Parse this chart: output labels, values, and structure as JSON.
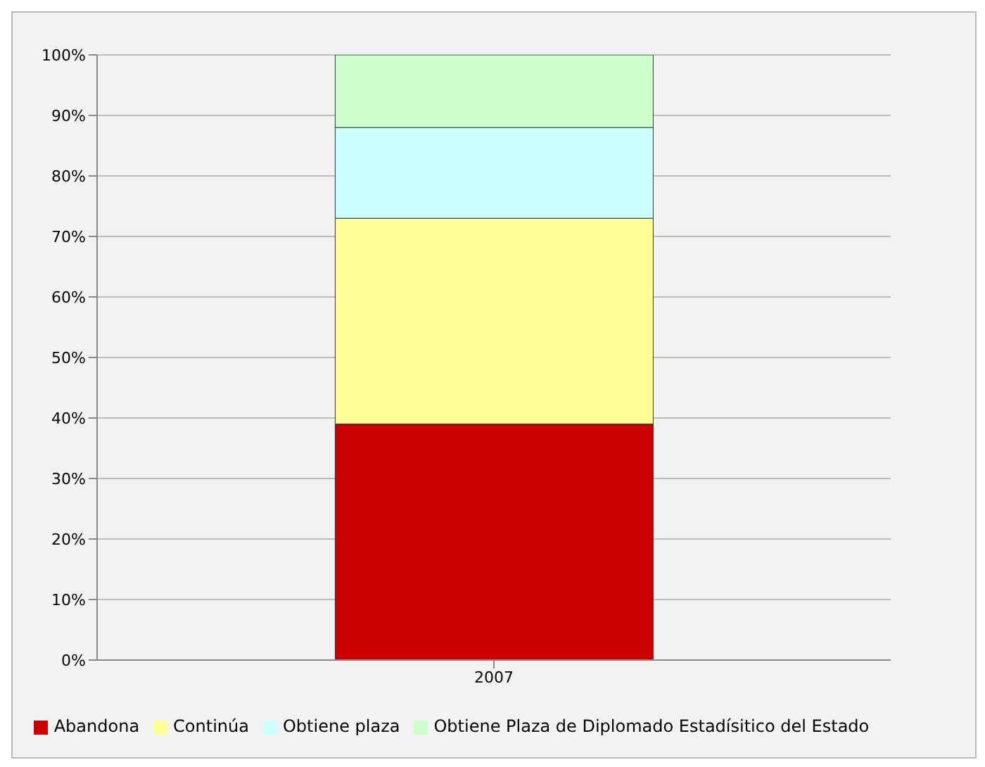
{
  "chart_data": {
    "type": "bar",
    "stacked": true,
    "categories": [
      "2007"
    ],
    "series": [
      {
        "name": "Abandona",
        "color": "#cc0000",
        "values": [
          39
        ]
      },
      {
        "name": "Continúa",
        "color": "#ffff99",
        "values": [
          34
        ]
      },
      {
        "name": "Obtiene plaza",
        "color": "#ccffff",
        "values": [
          15
        ]
      },
      {
        "name": "Obtiene Plaza de Diplomado Estadísitico del Estado",
        "color": "#ccffcc",
        "values": [
          12
        ]
      }
    ],
    "ylim": [
      0,
      100
    ],
    "yticks": [
      {
        "value": 0,
        "label": "0%"
      },
      {
        "value": 10,
        "label": "10%"
      },
      {
        "value": 20,
        "label": "20%"
      },
      {
        "value": 30,
        "label": "30%"
      },
      {
        "value": 40,
        "label": "40%"
      },
      {
        "value": 50,
        "label": "50%"
      },
      {
        "value": 60,
        "label": "60%"
      },
      {
        "value": 70,
        "label": "70%"
      },
      {
        "value": 80,
        "label": "80%"
      },
      {
        "value": 90,
        "label": "90%"
      },
      {
        "value": 100,
        "label": "100%"
      }
    ],
    "grid": "y",
    "legend": "bottom"
  }
}
